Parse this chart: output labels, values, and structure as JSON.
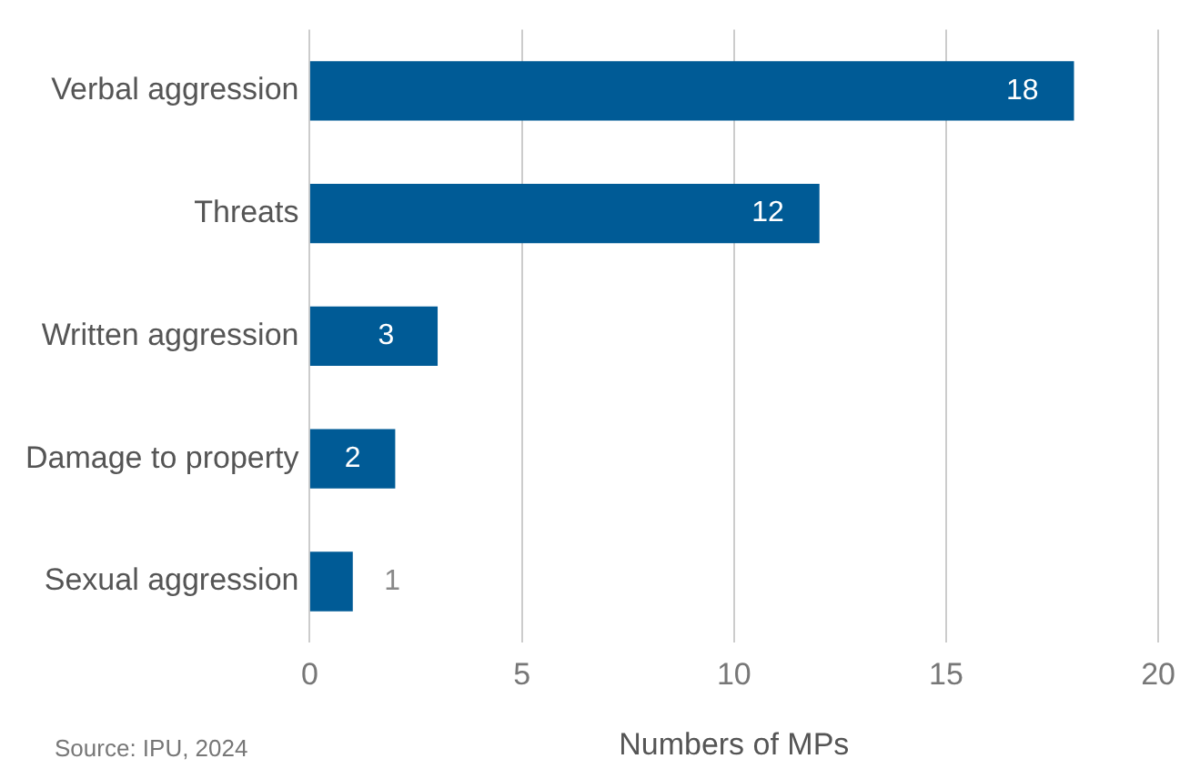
{
  "chart_data": {
    "type": "bar",
    "orientation": "horizontal",
    "categories": [
      "Verbal aggression",
      "Threats",
      "Written aggression",
      "Damage to property",
      "Sexual aggression"
    ],
    "values": [
      18,
      12,
      3,
      2,
      1
    ],
    "color": "#005b96",
    "xlim": [
      0,
      20
    ],
    "xticks": [
      0,
      5,
      10,
      15,
      20
    ],
    "grid": "x",
    "data_labels": true,
    "xlabel": "Numbers of MPs",
    "legend": false,
    "annotations": [
      "Source: IPU, 2024"
    ]
  }
}
